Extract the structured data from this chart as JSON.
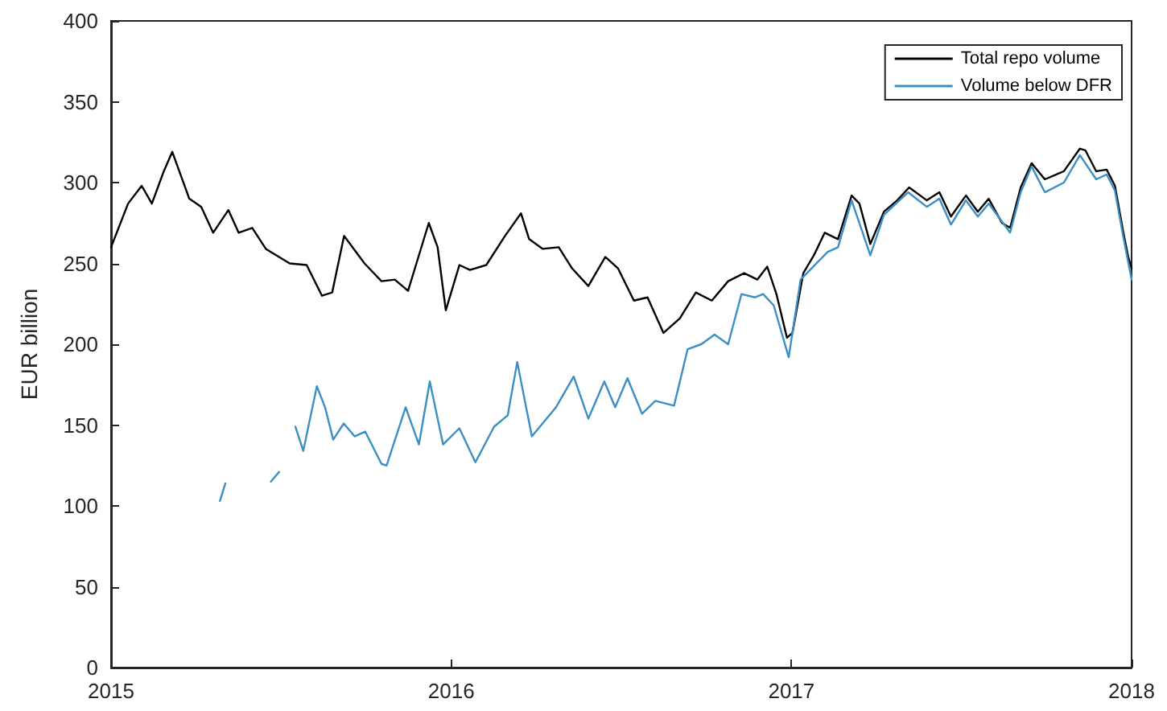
{
  "chart_data": {
    "type": "line",
    "ylabel": "EUR billion",
    "xlim": [
      2015,
      2018
    ],
    "xticks": [
      2015,
      2016,
      2017,
      2018
    ],
    "ylim": [
      0,
      400
    ],
    "yticks": [
      0,
      50,
      100,
      150,
      200,
      250,
      300,
      350,
      400
    ],
    "legend": "top right",
    "line_style": "solid",
    "series": [
      {
        "name": "Total repo volume",
        "color": "#000000",
        "x": [
          2015.0,
          2015.05,
          2015.09,
          2015.12,
          2015.155,
          2015.18,
          2015.23,
          2015.265,
          2015.3,
          2015.345,
          2015.375,
          2015.415,
          2015.455,
          2015.525,
          2015.575,
          2015.62,
          2015.65,
          2015.685,
          2015.745,
          2015.795,
          2015.834,
          2015.873,
          2015.934,
          2015.96,
          2015.984,
          2016.024,
          2016.055,
          2016.103,
          2016.158,
          2016.205,
          2016.229,
          2016.269,
          2016.316,
          2016.355,
          2016.403,
          2016.453,
          2016.49,
          2016.537,
          2016.577,
          2016.624,
          2016.672,
          2016.719,
          2016.766,
          2016.814,
          2016.861,
          2016.9,
          2016.929,
          2016.956,
          2016.987,
          2017.003,
          2017.035,
          2017.066,
          2017.098,
          2017.137,
          2017.177,
          2017.2,
          2017.232,
          2017.272,
          2017.311,
          2017.346,
          2017.398,
          2017.435,
          2017.469,
          2017.513,
          2017.548,
          2017.58,
          2017.619,
          2017.643,
          2017.674,
          2017.706,
          2017.745,
          2017.801,
          2017.848,
          2017.864,
          2017.896,
          2017.927,
          2017.951,
          2017.975,
          2017.99,
          2018.0
        ],
        "values": [
          260,
          287,
          298,
          287,
          307,
          319,
          290,
          285,
          269,
          283,
          269,
          272,
          259,
          250,
          249,
          230,
          232,
          267,
          250,
          239,
          240,
          233,
          275,
          260,
          221,
          249,
          246,
          249,
          267,
          281,
          265,
          259,
          260,
          247,
          236,
          254,
          247,
          227,
          229,
          207,
          216,
          232,
          227,
          239,
          244,
          240,
          248,
          231,
          204,
          207,
          244,
          255,
          269,
          265,
          292,
          287,
          262,
          282,
          289,
          297,
          289,
          294,
          279,
          292,
          282,
          290,
          275,
          272,
          297,
          312,
          302,
          307,
          321,
          320,
          307,
          308,
          298,
          270,
          254,
          247
        ]
      },
      {
        "name": "Volume below DFR",
        "color": "#3a8fc4",
        "x": [
          2015.32,
          2015.336,
          2015.4,
          2015.47,
          2015.494,
          2015.52,
          2015.542,
          2015.565,
          2015.605,
          2015.629,
          2015.653,
          2015.684,
          2015.716,
          2015.747,
          2015.795,
          2015.81,
          2015.866,
          2015.905,
          2015.937,
          2015.976,
          2016.024,
          2016.071,
          2016.126,
          2016.166,
          2016.194,
          2016.237,
          2016.308,
          2016.36,
          2016.403,
          2016.45,
          2016.482,
          2016.518,
          2016.561,
          2016.6,
          2016.655,
          2016.695,
          2016.735,
          2016.774,
          2016.814,
          2016.853,
          2016.893,
          2016.917,
          2016.948,
          2016.992,
          2017.027,
          2017.106,
          2017.137,
          2017.177,
          2017.232,
          2017.272,
          2017.343,
          2017.398,
          2017.435,
          2017.469,
          2017.513,
          2017.548,
          2017.58,
          2017.643,
          2017.674,
          2017.706,
          2017.745,
          2017.801,
          2017.848,
          2017.896,
          2017.927,
          2017.951,
          2017.975,
          2018.0
        ],
        "values": [
          103,
          114,
          null,
          115,
          121,
          null,
          149,
          134,
          174,
          161,
          141,
          151,
          143,
          146,
          126,
          125,
          161,
          138,
          177,
          138,
          148,
          127,
          149,
          156,
          189,
          143,
          161,
          180,
          154,
          177,
          161,
          179,
          157,
          165,
          162,
          197,
          200,
          206,
          200,
          231,
          229,
          231,
          224,
          192,
          240,
          257,
          260,
          289,
          255,
          280,
          294,
          285,
          290,
          274,
          289,
          279,
          287,
          269,
          294,
          310,
          294,
          300,
          317,
          302,
          305,
          295,
          267,
          240
        ]
      }
    ]
  }
}
